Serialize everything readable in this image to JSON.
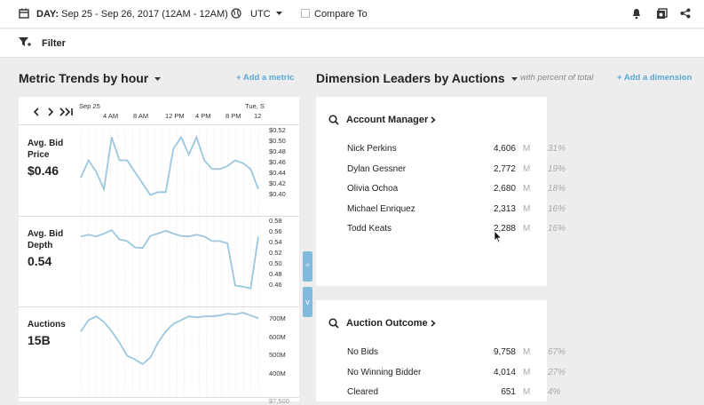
{
  "topbar": {
    "date_prefix": "DAY:",
    "date_range": "Sep 25 - Sep 26, 2017 (12AM - 12AM)",
    "timezone": "UTC",
    "compare_label": "Compare To"
  },
  "filterbar": {
    "filter_label": "Filter"
  },
  "metric_trends": {
    "title": "Metric Trends by hour",
    "add_metric": "+ Add a metric",
    "nav": {
      "first": "‹",
      "prev_next": "›",
      "last": "›|"
    },
    "x_ticks": [
      "Sep 25",
      "4 AM",
      "8 AM",
      "12 PM",
      "4 PM",
      "8 PM",
      "Tue, S",
      "12"
    ],
    "metrics": [
      {
        "name_line1": "Avg. Bid",
        "name_line2": "Price",
        "value": "$0.46",
        "y_ticks": [
          "$0.52",
          "$0.50",
          "$0.48",
          "$0.46",
          "$0.44",
          "$0.42",
          "$0.40"
        ],
        "ylim": [
          0.4,
          0.52
        ],
        "series": [
          0.44,
          0.47,
          0.45,
          0.42,
          0.51,
          0.47,
          0.47,
          0.45,
          0.43,
          0.41,
          0.415,
          0.415,
          0.49,
          0.51,
          0.48,
          0.51,
          0.47,
          0.455,
          0.455,
          0.46,
          0.47,
          0.465,
          0.455,
          0.42
        ]
      },
      {
        "name_line1": "Avg. Bid",
        "name_line2": "Depth",
        "value": "0.54",
        "y_ticks": [
          "0.58",
          "0.56",
          "0.54",
          "0.52",
          "0.50",
          "0.48",
          "0.46"
        ],
        "ylim": [
          0.46,
          0.58
        ],
        "series": [
          0.555,
          0.558,
          0.555,
          0.56,
          0.566,
          0.55,
          0.547,
          0.536,
          0.535,
          0.556,
          0.56,
          0.565,
          0.56,
          0.556,
          0.555,
          0.558,
          0.555,
          0.547,
          0.547,
          0.543,
          0.47,
          0.468,
          0.465,
          0.555
        ]
      },
      {
        "name_line1": "Auctions",
        "name_line2": "",
        "value": "15B",
        "y_ticks": [
          "700M",
          "600M",
          "500M",
          "400M"
        ],
        "ylim": [
          350,
          720
        ],
        "series": [
          620,
          680,
          700,
          670,
          620,
          560,
          490,
          470,
          445,
          480,
          560,
          620,
          660,
          680,
          700,
          695,
          700,
          700,
          705,
          715,
          710,
          720,
          705,
          690
        ]
      }
    ],
    "partial_row_tick": "$7,500"
  },
  "dimension_leaders": {
    "title": "Dimension Leaders by Auctions",
    "subtitle": "with percent of total",
    "add_dimension": "+ Add a dimension",
    "collapse_up": "^",
    "collapse_down": "v",
    "cards": [
      {
        "title": "Account Manager",
        "rows": [
          {
            "name": "Nick Perkins",
            "value": "4,606",
            "unit": "M",
            "pct": "31%"
          },
          {
            "name": "Dylan Gessner",
            "value": "2,772",
            "unit": "M",
            "pct": "19%"
          },
          {
            "name": "Olivia Ochoa",
            "value": "2,680",
            "unit": "M",
            "pct": "18%"
          },
          {
            "name": "Michael Enriquez",
            "value": "2,313",
            "unit": "M",
            "pct": "16%"
          },
          {
            "name": "Todd Keats",
            "value": "2,288",
            "unit": "M",
            "pct": "16%"
          }
        ]
      },
      {
        "title": "Auction Outcome",
        "rows": [
          {
            "name": "No Bids",
            "value": "9,758",
            "unit": "M",
            "pct": "67%"
          },
          {
            "name": "No Winning Bidder",
            "value": "4,014",
            "unit": "M",
            "pct": "27%"
          },
          {
            "name": "Cleared",
            "value": "651",
            "unit": "M",
            "pct": "4%"
          }
        ]
      }
    ]
  },
  "colors": {
    "accent": "#5aa9d6",
    "line": "#9cc7de",
    "tab": "#7fb9dc"
  }
}
